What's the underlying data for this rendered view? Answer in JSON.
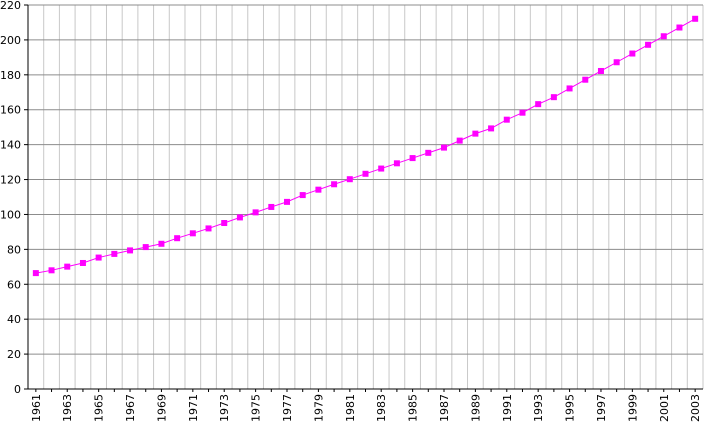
{
  "chart_data": {
    "type": "line",
    "title": "",
    "xlabel": "",
    "ylabel": "",
    "x": [
      1961,
      1962,
      1963,
      1964,
      1965,
      1966,
      1967,
      1968,
      1969,
      1970,
      1971,
      1972,
      1973,
      1974,
      1975,
      1976,
      1977,
      1978,
      1979,
      1980,
      1981,
      1982,
      1983,
      1984,
      1985,
      1986,
      1987,
      1988,
      1989,
      1990,
      1991,
      1992,
      1993,
      1994,
      1995,
      1996,
      1997,
      1998,
      1999,
      2000,
      2001,
      2002,
      2003
    ],
    "series": [
      {
        "values": [
          66.4,
          68.0,
          70.1,
          72.2,
          75.3,
          77.4,
          79.4,
          81.3,
          83.2,
          86.4,
          89.2,
          92.0,
          95.1,
          98.3,
          101.2,
          104.3,
          107.2,
          111.1,
          114.2,
          117.3,
          120.2,
          123.3,
          126.3,
          129.3,
          132.3,
          135.3,
          138.3,
          142.3,
          146.3,
          149.3,
          154.3,
          158.3,
          163.2,
          167.2,
          172.2,
          177.2,
          182.2,
          187.2,
          192.2,
          197.2,
          202.1,
          207.1,
          212.1
        ],
        "color": "#ff00ff"
      }
    ],
    "ylim": [
      0,
      220
    ],
    "yticks": [
      0,
      20,
      40,
      60,
      80,
      100,
      120,
      140,
      160,
      180,
      200,
      220
    ],
    "xtick_labels": [
      "1961",
      "1963",
      "1965",
      "1967",
      "1969",
      "1971",
      "1973",
      "1975",
      "1977",
      "1979",
      "1981",
      "1983",
      "1985",
      "1987",
      "1989",
      "1991",
      "1993",
      "1995",
      "1997",
      "1999",
      "2001",
      "2003"
    ],
    "grid": true,
    "legend": "none",
    "marker": "square"
  }
}
